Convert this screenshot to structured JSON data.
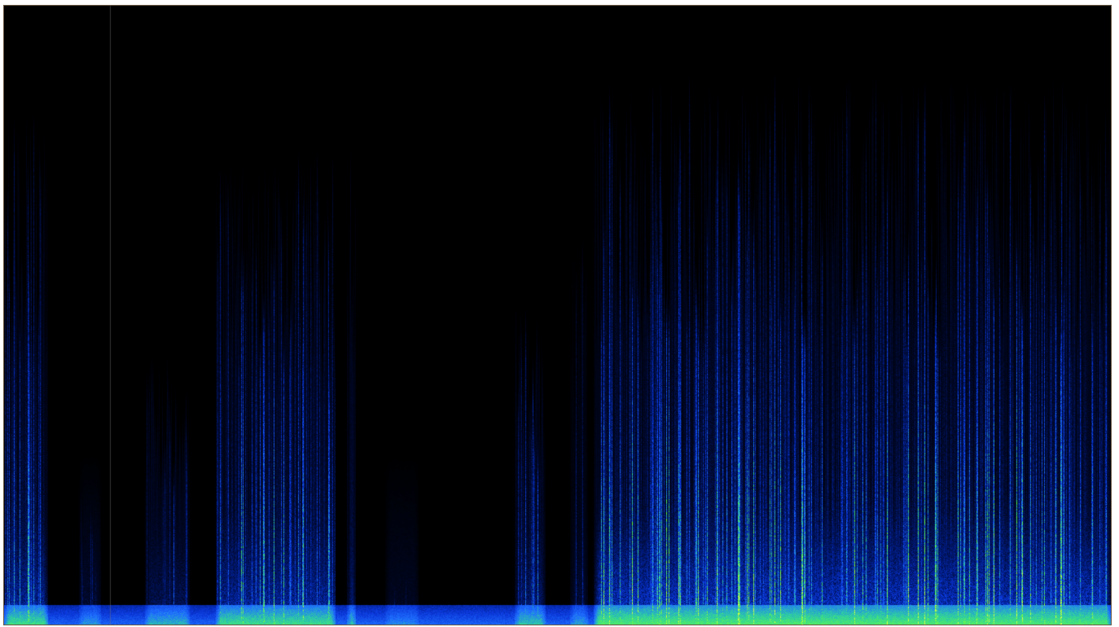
{
  "image": {
    "kind": "spectrogram",
    "colormap": [
      "#000000",
      "#00082a",
      "#001a7a",
      "#0a36d8",
      "#1f6fff",
      "#2fd0a0",
      "#6cff3a",
      "#d8ff4a"
    ],
    "background_color": "#000000",
    "border_color": "#6b5a45",
    "noise_floor_color": "#1b3ccf",
    "bursts": [
      {
        "start": 0.0,
        "end": 0.04,
        "intensity": 0.85,
        "height": 0.86
      },
      {
        "start": 0.068,
        "end": 0.088,
        "intensity": 0.4,
        "height": 0.25
      },
      {
        "start": 0.128,
        "end": 0.168,
        "intensity": 0.55,
        "height": 0.45
      },
      {
        "start": 0.192,
        "end": 0.3,
        "intensity": 0.85,
        "height": 0.78
      },
      {
        "start": 0.31,
        "end": 0.318,
        "intensity": 0.75,
        "height": 0.82
      },
      {
        "start": 0.345,
        "end": 0.375,
        "intensity": 0.3,
        "height": 0.12
      },
      {
        "start": 0.462,
        "end": 0.49,
        "intensity": 0.65,
        "height": 0.55
      },
      {
        "start": 0.512,
        "end": 0.528,
        "intensity": 0.45,
        "height": 0.65
      },
      {
        "start": 0.533,
        "end": 1.0,
        "intensity": 1.0,
        "height": 0.9
      }
    ],
    "cursor_line": {
      "position": 0.0955
    }
  }
}
